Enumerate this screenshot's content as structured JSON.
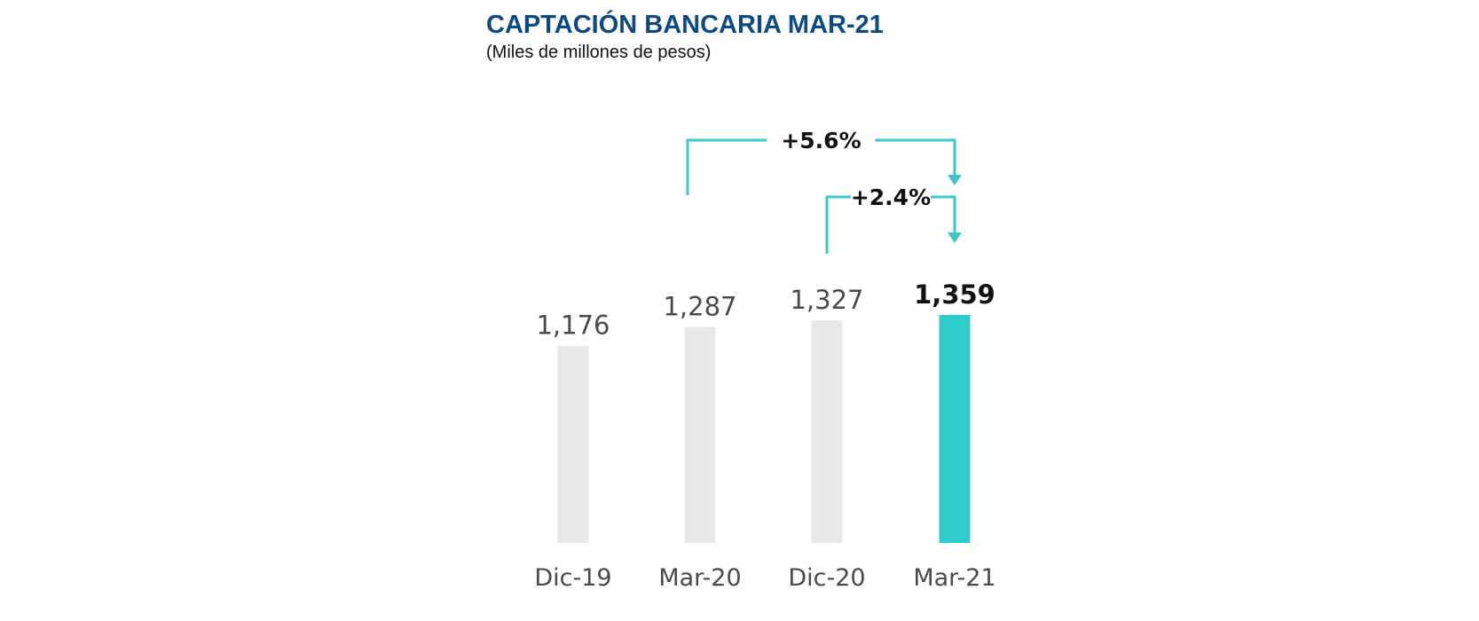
{
  "chart_data": {
    "type": "bar",
    "title": "CAPTACIÓN BANCARIA MAR-21",
    "subtitle": "(Miles de millones de pesos)",
    "categories": [
      "Dic-19",
      "Mar-20",
      "Dic-20",
      "Mar-21"
    ],
    "values": [
      1176,
      1287,
      1327,
      1359
    ],
    "value_labels": [
      "1,176",
      "1,287",
      "1,327",
      "1,359"
    ],
    "highlight_index": 3,
    "ylim": [
      0,
      1359
    ],
    "grid": false,
    "annotations": [
      {
        "label": "+5.6%",
        "from": "Mar-20",
        "to": "Mar-21"
      },
      {
        "label": "+2.4%",
        "from": "Dic-20",
        "to": "Mar-21"
      }
    ],
    "colors": {
      "bar": "#e8e8e8",
      "highlight_bar": "#2ecccc",
      "arrow": "#3cc6c8",
      "title": "#0b4a82"
    }
  }
}
